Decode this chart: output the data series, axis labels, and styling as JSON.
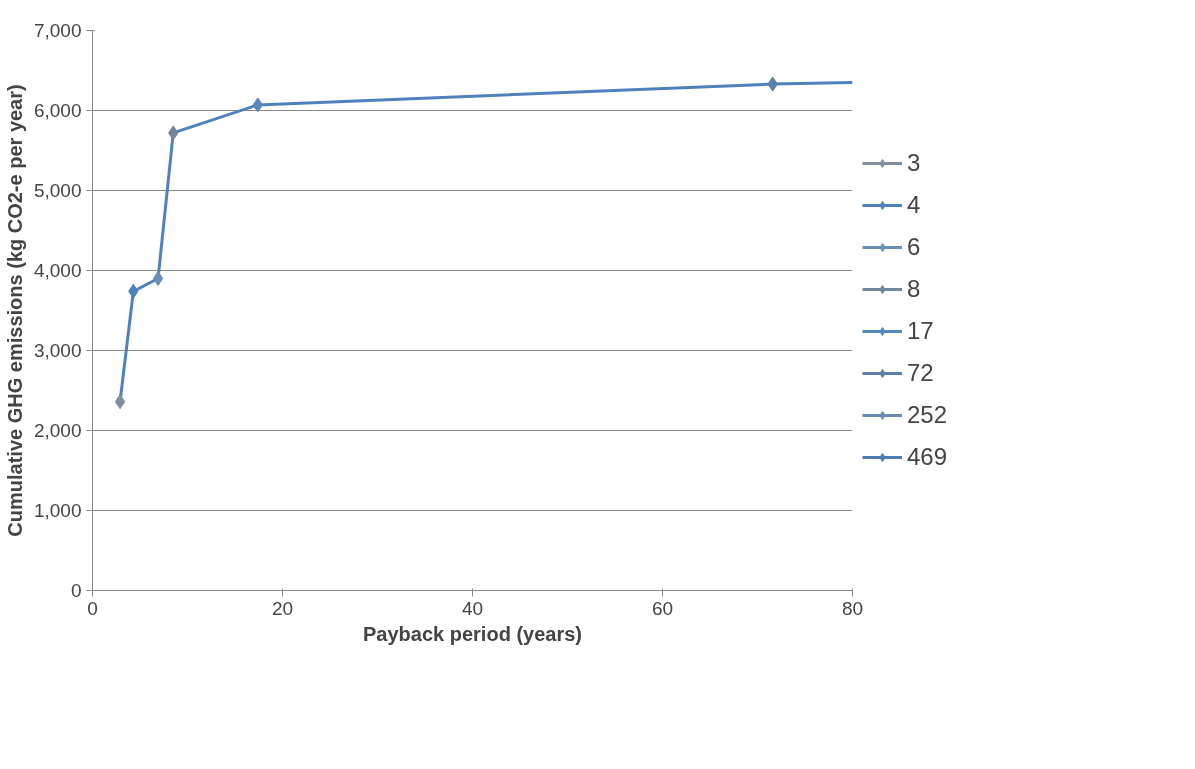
{
  "chart_data": {
    "type": "line",
    "xlabel": "Payback period (years)",
    "ylabel": "Cumulative GHG emissions (kg CO2-e per year)",
    "xlim": [
      0,
      80
    ],
    "xticks": [
      0,
      20,
      40,
      60,
      80
    ],
    "ylim": [
      0,
      7000
    ],
    "yticks": [
      {
        "value": 0,
        "label": "0"
      },
      {
        "value": 1000,
        "label": "1,000"
      },
      {
        "value": 2000,
        "label": "2,000"
      },
      {
        "value": 3000,
        "label": "3,000"
      },
      {
        "value": 4000,
        "label": "4,000"
      },
      {
        "value": 5000,
        "label": "5,000"
      },
      {
        "value": 6000,
        "label": "6,000"
      },
      {
        "value": 7000,
        "label": "7,000"
      }
    ],
    "grid": "y",
    "legend": "right",
    "marker": "diamond",
    "line_style": "solid",
    "series": [
      {
        "color": "#4f81bd",
        "marker": "none",
        "x": [
          2.9,
          4.3,
          6.9,
          8.5,
          17.4,
          71.6,
          80
        ],
        "values": [
          2360,
          3740,
          3900,
          5720,
          6070,
          6330,
          6350
        ]
      },
      {
        "type": "scatter",
        "name": "3",
        "color": "#7f8fa0",
        "x": [
          2.9
        ],
        "values": [
          2360
        ]
      },
      {
        "type": "scatter",
        "name": "4",
        "color": "#4f81bd",
        "x": [
          4.3
        ],
        "values": [
          3740
        ]
      },
      {
        "type": "scatter",
        "name": "6",
        "color": "#6a8fb5",
        "x": [
          6.9
        ],
        "values": [
          3900
        ]
      },
      {
        "type": "scatter",
        "name": "8",
        "color": "#71869c",
        "x": [
          8.5
        ],
        "values": [
          5720
        ]
      },
      {
        "type": "scatter",
        "name": "17",
        "color": "#5589c0",
        "x": [
          17.4
        ],
        "values": [
          6070
        ]
      },
      {
        "type": "scatter",
        "name": "72",
        "color": "#5a7fa8",
        "x": [
          71.6
        ],
        "values": [
          6330
        ]
      },
      {
        "type": "scatter",
        "name": "252",
        "color": "#6b8cae",
        "x": [
          null
        ],
        "values": [
          null
        ]
      },
      {
        "type": "scatter",
        "name": "469",
        "color": "#4c7cb4",
        "x": [
          null
        ],
        "values": [
          null
        ]
      }
    ]
  }
}
